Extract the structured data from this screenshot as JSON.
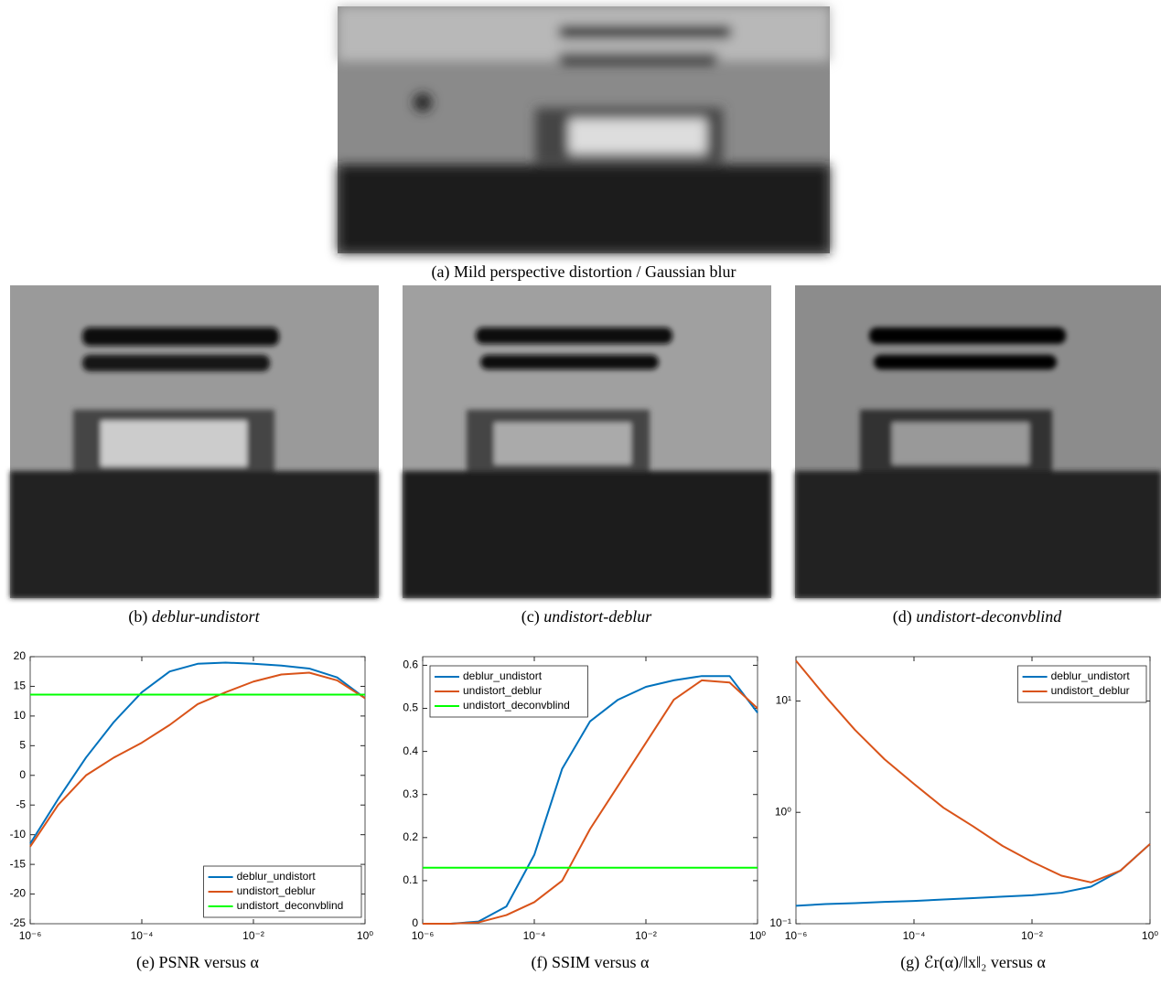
{
  "panels": [
    {
      "label": "(a) Mild perspective distortion / Gaussian blur"
    },
    {
      "label": "(b)",
      "name": "deblur-undistort"
    },
    {
      "label": "(c)",
      "name": "undistort-deblur"
    },
    {
      "label": "(d)",
      "name": "undistort-deconvblind"
    }
  ],
  "chart_data": [
    {
      "type": "line",
      "caption": "(e) PSNR versus α",
      "log_x": true,
      "legend": "lower right",
      "x": [
        1e-06,
        3.1623e-06,
        1e-05,
        3.1623e-05,
        0.0001,
        0.00031623,
        0.001,
        0.0031623,
        0.01,
        0.031623,
        0.1,
        0.31623,
        1
      ],
      "xlim": [
        1e-06,
        1
      ],
      "xticks": [
        {
          "value": 1e-06,
          "label": "10⁻⁶"
        },
        {
          "value": 0.0001,
          "label": "10⁻⁴"
        },
        {
          "value": 0.01,
          "label": "10⁻²"
        },
        {
          "value": 1,
          "label": "10⁰"
        }
      ],
      "ylim": [
        -25,
        20
      ],
      "yticks": [
        -25,
        -20,
        -15,
        -10,
        -5,
        0,
        5,
        10,
        15,
        20
      ],
      "series": [
        {
          "name": "deblur_undistort",
          "color": "#0072bd",
          "values": [
            -11.5,
            -4,
            3,
            9,
            14,
            17.5,
            18.8,
            19,
            18.8,
            18.5,
            18,
            16.5,
            13
          ]
        },
        {
          "name": "undistort_deblur",
          "color": "#d95319",
          "values": [
            -12,
            -5,
            0,
            3,
            5.5,
            8.5,
            12,
            14,
            15.8,
            17,
            17.3,
            16,
            13
          ]
        },
        {
          "name": "undistort_deconvblind",
          "color": "#00ff00",
          "values": [
            13.6,
            13.6,
            13.6,
            13.6,
            13.6,
            13.6,
            13.6,
            13.6,
            13.6,
            13.6,
            13.6,
            13.6,
            13.6
          ]
        }
      ]
    },
    {
      "type": "line",
      "caption": "(f) SSIM versus α",
      "log_x": true,
      "legend": "upper left",
      "x": [
        1e-06,
        3.1623e-06,
        1e-05,
        3.1623e-05,
        0.0001,
        0.00031623,
        0.001,
        0.0031623,
        0.01,
        0.031623,
        0.1,
        0.31623,
        1
      ],
      "xlim": [
        1e-06,
        1
      ],
      "xticks": [
        {
          "value": 1e-06,
          "label": "10⁻⁶"
        },
        {
          "value": 0.0001,
          "label": "10⁻⁴"
        },
        {
          "value": 0.01,
          "label": "10⁻²"
        },
        {
          "value": 1,
          "label": "10⁰"
        }
      ],
      "ylim": [
        0,
        0.62
      ],
      "yticks": [
        0,
        0.1,
        0.2,
        0.3,
        0.4,
        0.5,
        0.6
      ],
      "series": [
        {
          "name": "deblur_undistort",
          "color": "#0072bd",
          "values": [
            0,
            0,
            0.005,
            0.04,
            0.16,
            0.36,
            0.47,
            0.52,
            0.55,
            0.565,
            0.575,
            0.575,
            0.49
          ]
        },
        {
          "name": "undistort_deblur",
          "color": "#d95319",
          "values": [
            0,
            0,
            0.003,
            0.02,
            0.05,
            0.1,
            0.22,
            0.32,
            0.42,
            0.52,
            0.565,
            0.56,
            0.5
          ]
        },
        {
          "name": "undistort_deconvblind",
          "color": "#00ff00",
          "values": [
            0.13,
            0.13,
            0.13,
            0.13,
            0.13,
            0.13,
            0.13,
            0.13,
            0.13,
            0.13,
            0.13,
            0.13,
            0.13
          ]
        }
      ]
    },
    {
      "type": "line",
      "caption": "(g) ℰr(α)/‖x‖₂ versus α",
      "log_x": true,
      "log_y": true,
      "legend": "upper right",
      "x": [
        1e-06,
        3.1623e-06,
        1e-05,
        3.1623e-05,
        0.0001,
        0.00031623,
        0.001,
        0.0031623,
        0.01,
        0.031623,
        0.1,
        0.31623,
        1
      ],
      "xlim": [
        1e-06,
        1
      ],
      "xticks": [
        {
          "value": 1e-06,
          "label": "10⁻⁶"
        },
        {
          "value": 0.0001,
          "label": "10⁻⁴"
        },
        {
          "value": 0.01,
          "label": "10⁻²"
        },
        {
          "value": 1,
          "label": "10⁰"
        }
      ],
      "ylim": [
        0.1,
        25
      ],
      "yticks": [
        {
          "value": 0.1,
          "label": "10⁻¹"
        },
        {
          "value": 1,
          "label": "10⁰"
        },
        {
          "value": 10,
          "label": "10¹"
        }
      ],
      "series": [
        {
          "name": "deblur_undistort",
          "color": "#0072bd",
          "values": [
            0.145,
            0.15,
            0.153,
            0.157,
            0.16,
            0.165,
            0.17,
            0.175,
            0.18,
            0.19,
            0.215,
            0.3,
            0.52
          ]
        },
        {
          "name": "undistort_deblur",
          "color": "#d95319",
          "values": [
            23,
            11,
            5.5,
            3,
            1.8,
            1.1,
            0.75,
            0.5,
            0.36,
            0.27,
            0.235,
            0.3,
            0.52
          ]
        }
      ]
    }
  ]
}
